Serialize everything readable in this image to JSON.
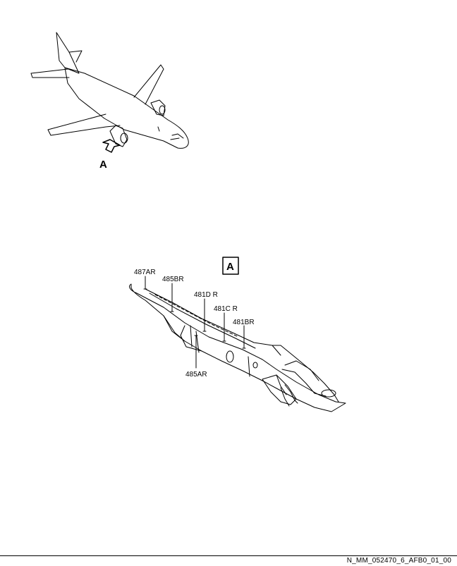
{
  "view_arrow_label": "A",
  "detail_box_label": "A",
  "callouts": {
    "c487AR": "487AR",
    "c485BR": "485BR",
    "c481DR": "481D R",
    "c481CR": "481C R",
    "c481BR": "481BR",
    "c485AR": "485AR"
  },
  "figure_code": "N_MM_052470_6_AFB0_01_00"
}
